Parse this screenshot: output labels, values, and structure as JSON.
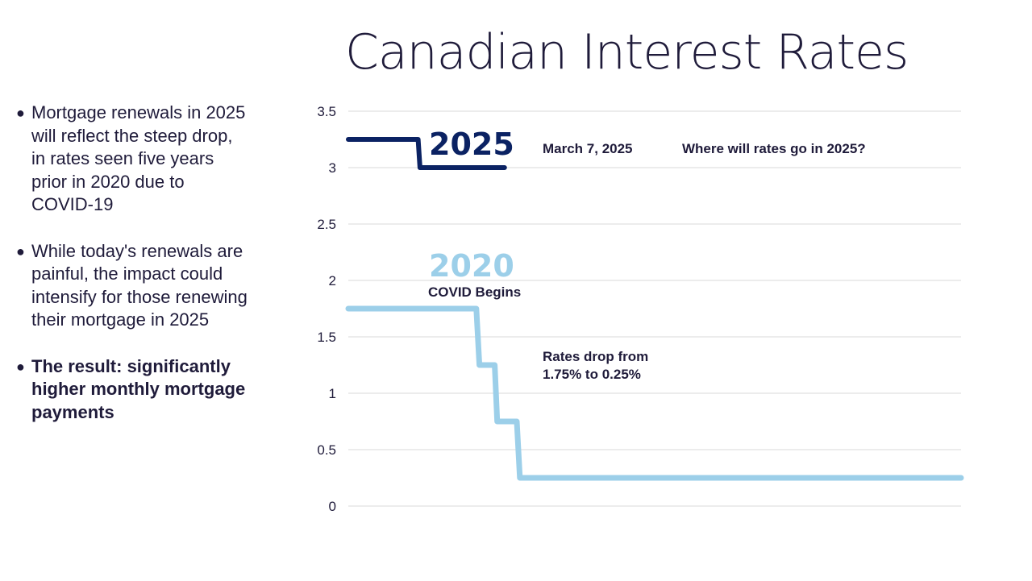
{
  "page": {
    "title": "Canadian Interest Rates"
  },
  "bullets": [
    {
      "text": "Mortgage renewals in 2025 will reflect the steep drop, in rates seen five years prior in 2020 due to COVID-19",
      "bold": false
    },
    {
      "text": "While today's renewals are painful, the impact could intensify for those renewing their mortgage in 2025",
      "bold": false
    },
    {
      "text": "The result: significantly higher monthly mortgage payments",
      "bold": true
    }
  ],
  "chart_data": {
    "type": "line",
    "title": "Canadian Interest Rates",
    "xlabel": "",
    "ylabel": "",
    "ylim": [
      0,
      3.5
    ],
    "yticks": [
      "0",
      "0.5",
      "1",
      "1.5",
      "2",
      "2.5",
      "3",
      "3.5"
    ],
    "grid": true,
    "xlim": [
      0,
      100
    ],
    "series": [
      {
        "name": "2025",
        "color": "#0b2263",
        "x": [
          0,
          11.4,
          11.7,
          25.5
        ],
        "y": [
          3.25,
          3.25,
          3.0,
          3.0
        ]
      },
      {
        "name": "2020",
        "color": "#9ccfe9",
        "x": [
          0,
          20.9,
          21.4,
          23.9,
          24.3,
          27.5,
          28.0,
          100
        ],
        "y": [
          1.75,
          1.75,
          1.25,
          1.25,
          0.75,
          0.75,
          0.25,
          0.25
        ]
      }
    ],
    "annotations": {
      "label_2025": "2025",
      "label_2020": "2020",
      "march": "March 7, 2025",
      "where": "Where will rates go in 2025?",
      "covid": "COVID Begins",
      "drop_line1": "Rates drop from",
      "drop_line2": "1.75% to 0.25%"
    }
  }
}
